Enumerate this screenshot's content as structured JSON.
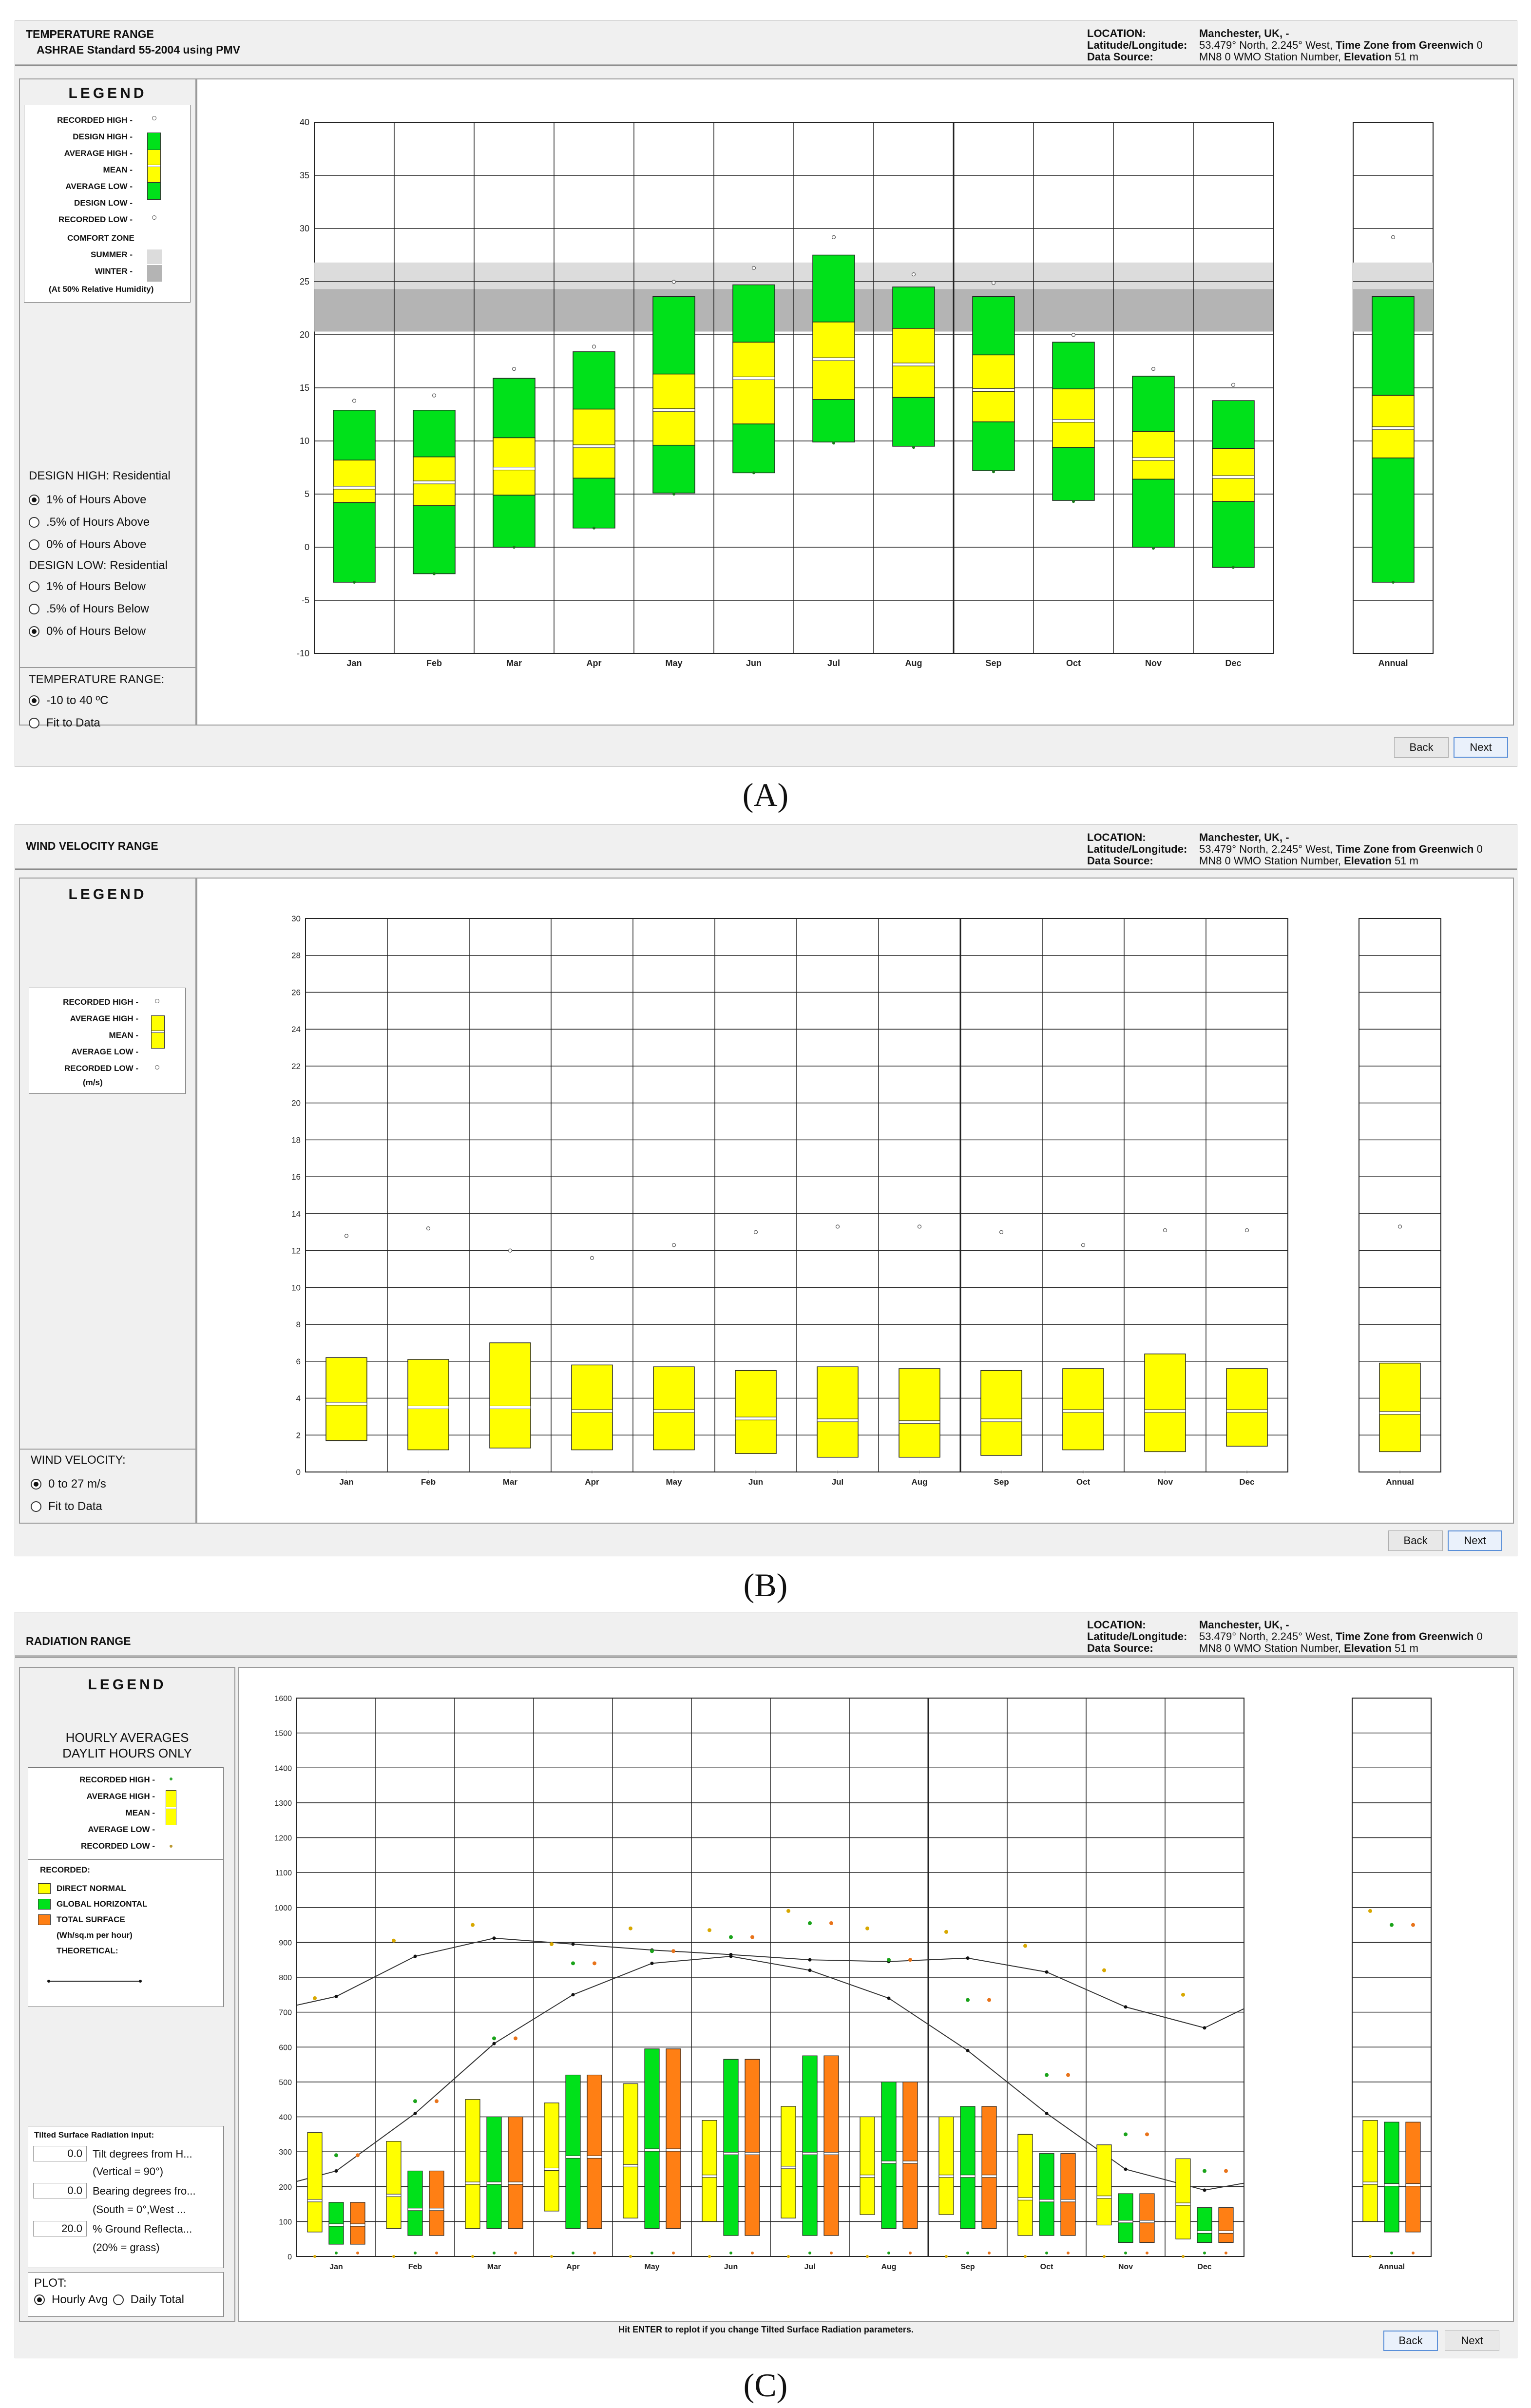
{
  "colors": {
    "green": "#00e11a",
    "yellow": "#ffff00",
    "orange": "#ff7f14",
    "comfort": "#c2c2c2",
    "grid": "#222222"
  },
  "location": {
    "label": "LOCATION:",
    "value": "Manchester, UK, -",
    "latlon_label": "Latitude/Longitude:",
    "latlon_value": "53.479° North, 2.245° West,",
    "tz_label": "Time Zone from Greenwich",
    "tz_value": "0",
    "source_label": "Data Source:",
    "source_value": "MN8     0 WMO Station Number,",
    "elev_label": "Elevation",
    "elev_value": "51 m"
  },
  "months": [
    "Jan",
    "Feb",
    "Mar",
    "Apr",
    "May",
    "Jun",
    "Jul",
    "Aug",
    "Sep",
    "Oct",
    "Nov",
    "Dec"
  ],
  "annual_label": "Annual",
  "nav": {
    "back": "Back",
    "next": "Next"
  },
  "panelA": {
    "title": "TEMPERATURE RANGE",
    "subtitle": "ASHRAE Standard 55-2004 using PMV",
    "caption": "(A)",
    "legend": {
      "title": "LEGEND",
      "recorded_high": "RECORDED HIGH -",
      "design_high": "DESIGN HIGH -",
      "average_high": "AVERAGE HIGH -",
      "mean": "MEAN -",
      "average_low": "AVERAGE LOW -",
      "design_low": "DESIGN LOW -",
      "recorded_low": "RECORDED LOW -",
      "comfort_zone": "COMFORT ZONE",
      "summer": "SUMMER -",
      "winter": "WINTER -",
      "note": "(At 50% Relative Humidity)"
    },
    "design_high": {
      "label": "DESIGN HIGH:  Residential",
      "options": [
        "1% of Hours Above",
        ".5% of Hours Above",
        "0% of Hours Above"
      ],
      "selected": 0
    },
    "design_low": {
      "label": "DESIGN LOW:  Residential",
      "options": [
        "1% of Hours Below",
        ".5% of Hours Below",
        "0% of Hours Below"
      ],
      "selected": 2
    },
    "range": {
      "label": "TEMPERATURE RANGE:",
      "options": [
        "-10 to 40 ºC",
        "Fit to Data"
      ],
      "selected": 0
    }
  },
  "panelB": {
    "title": "WIND VELOCITY RANGE",
    "caption": "(B)",
    "legend": {
      "title": "LEGEND",
      "recorded_high": "RECORDED HIGH -",
      "average_high": "AVERAGE HIGH -",
      "mean": "MEAN -",
      "average_low": "AVERAGE LOW -",
      "recorded_low": "RECORDED LOW -",
      "units": "(m/s)"
    },
    "range": {
      "label": "WIND VELOCITY:",
      "options": [
        "0 to 27 m/s",
        "Fit to Data"
      ],
      "selected": 0
    }
  },
  "panelC": {
    "title": "RADIATION RANGE",
    "caption": "(C)",
    "legend": {
      "title": "LEGEND",
      "heading1": "HOURLY AVERAGES",
      "heading2": "DAYLIT HOURS ONLY",
      "recorded_high": "RECORDED HIGH -",
      "average_high": "AVERAGE HIGH -",
      "mean": "MEAN -",
      "average_low": "AVERAGE LOW -",
      "recorded_low": "RECORDED LOW -",
      "recorded": "RECORDED:",
      "direct": "DIRECT NORMAL",
      "global": "GLOBAL HORIZONTAL",
      "total": "TOTAL SURFACE",
      "units": "(Wh/sq.m per hour)",
      "theoretical": "THEORETICAL:"
    },
    "tilted": {
      "label": "Tilted Surface Radiation input:",
      "tilt_value": "0.0",
      "tilt_label": "Tilt degrees from H...",
      "tilt_note": "(Vertical = 90°)",
      "bearing_value": "0.0",
      "bearing_label": "Bearing degrees fro...",
      "bearing_note": "(South = 0°,West ...",
      "ground_value": "20.0",
      "ground_label": "% Ground Reflecta...",
      "ground_note": "(20% = grass)"
    },
    "plot": {
      "label": "PLOT:",
      "options": [
        "Hourly Avg",
        "Daily Total"
      ],
      "selected": 0
    },
    "hint": "Hit ENTER to replot if you change Tilted Surface Radiation parameters."
  },
  "chart_data": [
    {
      "type": "box",
      "id": "temperature",
      "title": "TEMPERATURE RANGE",
      "ylabel": "°C",
      "ylim": [
        -10,
        40
      ],
      "yticks": [
        -10,
        -5,
        0,
        5,
        10,
        15,
        20,
        25,
        30,
        35,
        40
      ],
      "categories": [
        "Jan",
        "Feb",
        "Mar",
        "Apr",
        "May",
        "Jun",
        "Jul",
        "Aug",
        "Sep",
        "Oct",
        "Nov",
        "Dec",
        "Annual"
      ],
      "comfort_summer": [
        20.3,
        26.8
      ],
      "comfort_winter": [
        20.3,
        24.3
      ],
      "design_high": [
        12.9,
        12.9,
        15.9,
        18.4,
        23.6,
        24.7,
        27.5,
        24.5,
        23.6,
        19.3,
        16.1,
        13.8,
        23.6
      ],
      "average_high": [
        8.2,
        8.5,
        10.3,
        13,
        16.3,
        19.3,
        21.2,
        20.6,
        18.1,
        14.9,
        10.9,
        9.3,
        14.3
      ],
      "mean": [
        5.6,
        6.1,
        7.4,
        9.5,
        12.9,
        15.9,
        17.7,
        17.2,
        14.8,
        11.9,
        8.3,
        6.6,
        11.2
      ],
      "average_low": [
        4.2,
        3.9,
        4.9,
        6.5,
        9.6,
        11.6,
        13.9,
        14.1,
        11.8,
        9.4,
        6.4,
        4.3,
        8.4
      ],
      "design_low": [
        -3.3,
        -2.5,
        0,
        1.8,
        5.1,
        7,
        9.9,
        9.5,
        7.2,
        4.4,
        0,
        -1.9,
        -3.3
      ],
      "recorded_high": [
        13.6,
        14.1,
        16.6,
        18.7,
        24.8,
        26.1,
        29,
        25.5,
        24.7,
        19.8,
        16.6,
        15.1,
        29
      ],
      "recorded_low": [
        -3.3,
        -2.5,
        0,
        1.8,
        5,
        7,
        9.8,
        9.4,
        7.1,
        4.3,
        -0.1,
        -1.9,
        -3.3
      ]
    },
    {
      "type": "box",
      "id": "wind",
      "title": "WIND VELOCITY RANGE",
      "ylabel": "m/s",
      "ylim": [
        0,
        30
      ],
      "yticks": [
        0,
        2,
        4,
        6,
        8,
        10,
        12,
        14,
        16,
        18,
        20,
        22,
        24,
        26,
        28,
        30
      ],
      "categories": [
        "Jan",
        "Feb",
        "Mar",
        "Apr",
        "May",
        "Jun",
        "Jul",
        "Aug",
        "Sep",
        "Oct",
        "Nov",
        "Dec",
        "Annual"
      ],
      "average_high": [
        6.2,
        6.1,
        7,
        5.8,
        5.7,
        5.5,
        5.7,
        5.6,
        5.5,
        5.6,
        6.4,
        5.6,
        5.9
      ],
      "mean": [
        3.7,
        3.5,
        3.5,
        3.3,
        3.3,
        2.9,
        2.8,
        2.7,
        2.8,
        3.3,
        3.3,
        3.3,
        3.2
      ],
      "average_low": [
        1.7,
        1.2,
        1.3,
        1.2,
        1.2,
        1,
        0.8,
        0.8,
        0.9,
        1.2,
        1.1,
        1.4,
        1.1
      ],
      "recorded_high": [
        12.8,
        13.2,
        12,
        11.6,
        12.3,
        13,
        13.3,
        13.3,
        13,
        12.3,
        13.1,
        13.1,
        13.3
      ],
      "recorded_low": [
        0,
        0,
        0,
        0,
        0,
        0,
        0,
        0,
        0,
        0,
        0,
        0,
        0
      ]
    },
    {
      "type": "box",
      "id": "radiation",
      "title": "RADIATION RANGE",
      "ylabel": "Wh/sq.m per hour",
      "ylim": [
        0,
        1600
      ],
      "yticks": [
        0,
        100,
        200,
        300,
        400,
        500,
        600,
        700,
        800,
        900,
        1000,
        1100,
        1200,
        1300,
        1400,
        1500,
        1600
      ],
      "categories": [
        "Jan",
        "Feb",
        "Mar",
        "Apr",
        "May",
        "Jun",
        "Jul",
        "Aug",
        "Sep",
        "Oct",
        "Nov",
        "Dec",
        "Annual"
      ],
      "series": [
        {
          "name": "DIRECT NORMAL",
          "color": "#ffff00",
          "average_high": [
            355,
            330,
            450,
            440,
            495,
            390,
            430,
            400,
            400,
            350,
            320,
            280,
            390
          ],
          "mean": [
            160,
            175,
            210,
            250,
            260,
            230,
            255,
            230,
            230,
            165,
            170,
            150,
            210
          ],
          "average_low": [
            70,
            80,
            80,
            130,
            110,
            100,
            110,
            120,
            120,
            60,
            90,
            50,
            100
          ],
          "recorded_high": [
            740,
            905,
            950,
            895,
            940,
            935,
            990,
            940,
            930,
            890,
            820,
            750,
            990
          ],
          "recorded_low": [
            0,
            0,
            0,
            0,
            0,
            0,
            0,
            0,
            0,
            0,
            0,
            0,
            0
          ]
        },
        {
          "name": "GLOBAL HORIZONTAL",
          "color": "#00e11a",
          "average_high": [
            155,
            245,
            400,
            520,
            595,
            565,
            575,
            500,
            430,
            295,
            180,
            140,
            385
          ],
          "mean": [
            90,
            135,
            210,
            285,
            305,
            295,
            295,
            270,
            230,
            160,
            100,
            70,
            205
          ],
          "average_low": [
            35,
            60,
            80,
            80,
            80,
            60,
            60,
            80,
            80,
            60,
            40,
            40,
            70
          ],
          "recorded_high": [
            290,
            445,
            625,
            840,
            875,
            915,
            955,
            850,
            735,
            520,
            350,
            245,
            950
          ],
          "recorded_low": [
            10,
            10,
            10,
            10,
            10,
            10,
            10,
            10,
            10,
            10,
            10,
            10,
            10
          ]
        },
        {
          "name": "TOTAL SURFACE",
          "color": "#ff7f14",
          "average_high": [
            155,
            245,
            400,
            520,
            595,
            565,
            575,
            500,
            430,
            295,
            180,
            140,
            385
          ],
          "mean": [
            90,
            135,
            210,
            285,
            305,
            295,
            295,
            270,
            230,
            160,
            100,
            70,
            205
          ],
          "average_low": [
            35,
            60,
            80,
            80,
            80,
            60,
            60,
            80,
            80,
            60,
            40,
            40,
            70
          ],
          "recorded_high": [
            290,
            445,
            625,
            840,
            875,
            915,
            955,
            850,
            735,
            520,
            350,
            245,
            950
          ],
          "recorded_low": [
            10,
            10,
            10,
            10,
            10,
            10,
            10,
            10,
            10,
            10,
            10,
            10,
            10
          ]
        }
      ],
      "theoretical": [
        {
          "name": "direct normal theoretical",
          "x": [
            0,
            0.5,
            1.5,
            2.5,
            3.5,
            4.5,
            5.5,
            6.5,
            7.5,
            8.5,
            9.5,
            10.5,
            11.5,
            12
          ],
          "y": [
            720,
            745,
            860,
            912,
            895,
            878,
            865,
            850,
            845,
            855,
            815,
            715,
            655,
            710
          ]
        },
        {
          "name": "global horizontal theoretical",
          "x": [
            0,
            0.5,
            1.5,
            2.5,
            3.5,
            4.5,
            5.5,
            6.5,
            7.5,
            8.5,
            9.5,
            10.5,
            11.5,
            12
          ],
          "y": [
            215,
            245,
            410,
            610,
            750,
            840,
            860,
            820,
            740,
            590,
            410,
            250,
            190,
            210
          ]
        }
      ]
    }
  ]
}
